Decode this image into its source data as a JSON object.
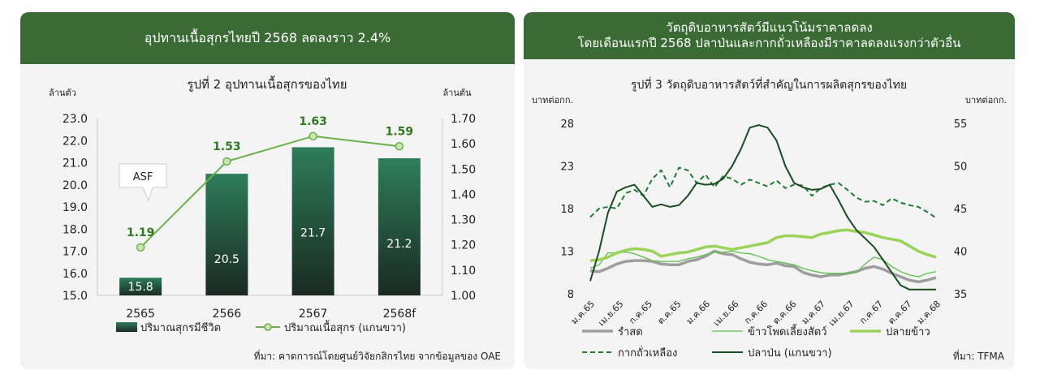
{
  "left": {
    "header": "อุปทานเนื้อสุกรไทยปี 2568 ลดลงราว 2.4%",
    "source": "ที่มา: คาดการณ์โดยศูนย์วิจัยกสิกรไทย จากข้อมูลของ OAE",
    "callout": "ASF",
    "colors": {
      "bar_top": "#2e7d5b",
      "bar_bottom": "#1a2a22",
      "line": "#6bb04a",
      "header": "#3a6b35"
    },
    "chart_data": {
      "type": "bar",
      "title": "รูปที่ 2 อุปทานเนื้อสุกรของไทย",
      "categories": [
        "2565",
        "2566",
        "2567",
        "2568f"
      ],
      "ylabel_left": "ล้านตัว",
      "ylabel_right": "ล้านตัน",
      "yticks_left": [
        "15.0",
        "16.0",
        "17.0",
        "18.0",
        "19.0",
        "20.0",
        "21.0",
        "22.0",
        "23.0"
      ],
      "yticks_right": [
        "1.00",
        "1.10",
        "1.20",
        "1.30",
        "1.40",
        "1.50",
        "1.60",
        "1.70"
      ],
      "ylim_left": [
        15.0,
        23.0
      ],
      "ylim_right": [
        1.0,
        1.7
      ],
      "series": [
        {
          "name": "ปริมาณสุกรมีชีวิต",
          "type": "bar",
          "axis": "left",
          "values": [
            15.8,
            20.5,
            21.7,
            21.2
          ],
          "labels": [
            "15.8",
            "20.5",
            "21.7",
            "21.2"
          ]
        },
        {
          "name": "ปริมาณเนื้อสุกร (แกนขวา)",
          "type": "line",
          "axis": "right",
          "values": [
            1.19,
            1.53,
            1.63,
            1.59
          ],
          "labels": [
            "1.19",
            "1.53",
            "1.63",
            "1.59"
          ]
        }
      ],
      "legend": "bottom"
    }
  },
  "right": {
    "header_line1": "วัตถุดิบอาหารสัตว์มีแนวโน้มราคาลดลง",
    "header_line2": "โดยเดือนแรกปี 2568 ปลาป่นและกากถั่วเหลืองมีราคาลดลงแรงกว่าตัวอื่น",
    "source": "ที่มา: TFMA",
    "colors": {
      "rice_bran": "#9e9e9e",
      "corn": "#5cc04a",
      "broken_rice": "#9bd35a",
      "soymeal": "#1f7a32",
      "fishmeal": "#1b4d20"
    },
    "chart_data": {
      "type": "line",
      "title": "รูปที่ 3 วัตถุดิบอาหารสัตว์ที่สำคัญในการผลิตสุกรของไทย",
      "ylabel_left": "บาทต่อกก.",
      "ylabel_right": "บาทต่อกก.",
      "yticks_left": [
        "8",
        "13",
        "18",
        "23",
        "28"
      ],
      "yticks_right": [
        "35",
        "40",
        "45",
        "50",
        "55"
      ],
      "ylim_left": [
        8,
        28
      ],
      "ylim_right": [
        35,
        55
      ],
      "xticks": [
        "ม.ค.65",
        "เม.ย.65",
        "ก.ค.65",
        "ต.ค.65",
        "ม.ค.66",
        "เม.ย.66",
        "ก.ค.66",
        "ต.ค.66",
        "ม.ค.67",
        "เม.ย.67",
        "ก.ค.67",
        "ต.ค.67",
        "ม.ค.68"
      ],
      "series": [
        {
          "name": "รำสด",
          "axis": "left",
          "values": [
            10.7,
            10.6,
            11.0,
            11.5,
            11.8,
            11.9,
            11.9,
            11.8,
            11.5,
            11.4,
            11.4,
            11.8,
            12.0,
            12.4,
            13.0,
            12.7,
            12.6,
            12.1,
            11.7,
            11.5,
            11.4,
            11.6,
            11.3,
            11.2,
            10.5,
            10.2,
            10.0,
            10.2,
            10.2,
            10.4,
            10.6,
            11.0,
            11.2,
            10.9,
            10.4,
            10.0,
            9.6,
            9.4,
            9.6,
            9.9
          ]
        },
        {
          "name": "ข้าวโพดเลี้ยงสัตว์",
          "axis": "left",
          "values": [
            11.0,
            11.4,
            12.8,
            12.8,
            12.9,
            12.7,
            12.3,
            11.9,
            11.8,
            11.8,
            11.8,
            12.1,
            12.3,
            12.6,
            12.9,
            12.9,
            13.0,
            12.8,
            12.7,
            12.4,
            12.0,
            11.8,
            11.6,
            11.4,
            11.0,
            10.7,
            10.5,
            10.4,
            10.4,
            10.4,
            10.5,
            11.5,
            12.3,
            12.0,
            11.2,
            10.6,
            10.2,
            10.0,
            10.4,
            10.6
          ]
        },
        {
          "name": "ปลายข้าว",
          "axis": "left",
          "values": [
            11.9,
            12.0,
            12.3,
            12.8,
            13.1,
            13.3,
            13.2,
            13.0,
            12.4,
            12.6,
            12.8,
            12.9,
            13.2,
            13.5,
            13.6,
            13.4,
            13.2,
            13.4,
            13.6,
            13.8,
            14.0,
            14.6,
            14.8,
            14.8,
            14.7,
            14.6,
            15.0,
            15.2,
            15.4,
            15.5,
            15.3,
            15.2,
            14.9,
            14.6,
            14.4,
            14.2,
            13.6,
            13.0,
            12.6,
            12.3
          ]
        },
        {
          "name": "กากถั่วเหลือง",
          "axis": "left",
          "values": [
            17.0,
            18.0,
            18.2,
            18.0,
            19.8,
            20.2,
            19.5,
            21.5,
            22.5,
            20.5,
            22.8,
            22.5,
            21.0,
            22.0,
            20.5,
            21.8,
            21.5,
            20.8,
            21.4,
            21.0,
            20.6,
            21.3,
            20.4,
            20.8,
            20.7,
            19.5,
            20.4,
            20.8,
            21.0,
            20.2,
            19.3,
            18.8,
            18.9,
            18.4,
            19.2,
            18.7,
            18.4,
            18.2,
            17.6,
            16.9
          ]
        },
        {
          "name": "ปลาป่น (แกนขวา)",
          "axis": "right",
          "values": [
            36.5,
            40.0,
            44.5,
            47.0,
            47.5,
            47.8,
            46.5,
            45.2,
            45.5,
            45.2,
            45.4,
            46.5,
            48.0,
            47.8,
            47.9,
            48.5,
            50.0,
            52.0,
            54.5,
            54.8,
            54.5,
            53.0,
            50.0,
            48.0,
            47.5,
            47.2,
            47.3,
            47.8,
            46.0,
            44.0,
            42.5,
            41.5,
            40.5,
            39.0,
            37.5,
            36.0,
            35.5,
            35.5,
            35.5,
            35.5
          ]
        }
      ],
      "legend_rows": [
        [
          "รำสด",
          "ข้าวโพดเลี้ยงสัตว์",
          "ปลายข้าว"
        ],
        [
          "กากถั่วเหลือง",
          "ปลาป่น (แกนขวา)"
        ]
      ],
      "legend": "bottom"
    }
  }
}
